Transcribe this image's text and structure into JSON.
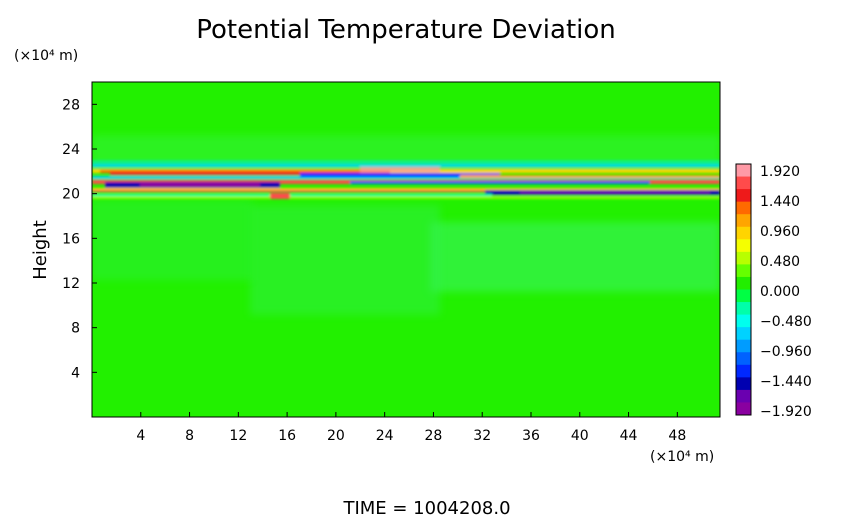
{
  "chart_data": {
    "type": "heatmap",
    "title": "Potential Temperature Deviation",
    "ylabel": "Height",
    "y_unit": "(×10⁴ m)",
    "x_unit": "(×10⁴ m)",
    "x_ticks": [
      "4",
      "8",
      "12",
      "16",
      "20",
      "24",
      "28",
      "32",
      "36",
      "40",
      "44",
      "48"
    ],
    "y_ticks": [
      "4",
      "8",
      "12",
      "16",
      "20",
      "24",
      "28"
    ],
    "xlim": [
      0,
      51.5
    ],
    "ylim": [
      0,
      30
    ],
    "colorbar": {
      "labels": [
        "1.920",
        "1.440",
        "0.960",
        "0.480",
        "0.000",
        "−0.480",
        "−0.960",
        "−1.440",
        "−1.920"
      ],
      "range": [
        -1.92,
        1.92
      ],
      "colors": [
        "#ff9aa6",
        "#ff4b4b",
        "#ee1a1a",
        "#ff6a00",
        "#ffa500",
        "#ffd400",
        "#f5ff00",
        "#b8ff00",
        "#66ff00",
        "#22ee00",
        "#00ff44",
        "#00ffaa",
        "#00ffee",
        "#00d2ff",
        "#009cff",
        "#0062ff",
        "#0028ff",
        "#0000b0",
        "#6a00b0",
        "#8a00a0"
      ]
    },
    "background_value": 0.0,
    "features": [
      {
        "name": "upper perturbation band",
        "y_center": 21.0,
        "x_range": [
          0,
          51.5
        ],
        "amplitude": 1.92
      }
    ],
    "footer": "TIME = 1004208.0"
  }
}
